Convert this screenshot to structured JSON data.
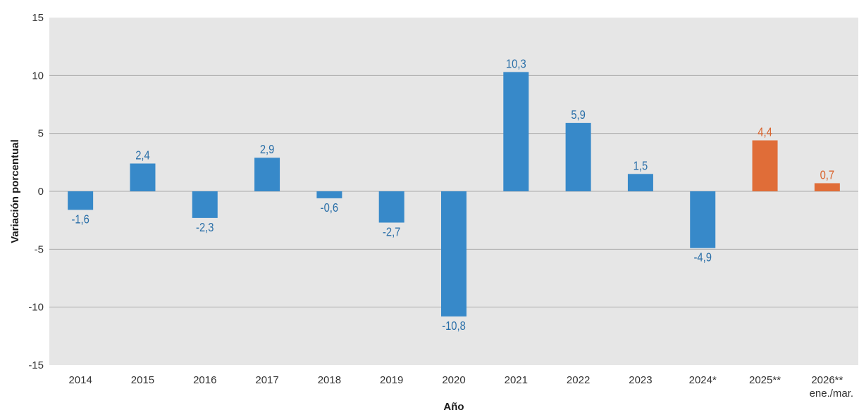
{
  "chart_data": {
    "type": "bar",
    "categories": [
      "2014",
      "2015",
      "2016",
      "2017",
      "2018",
      "2019",
      "2020",
      "2021",
      "2022",
      "2023",
      "2024*",
      "2025**",
      "2026**"
    ],
    "category_sublabels": [
      "",
      "",
      "",
      "",
      "",
      "",
      "",
      "",
      "",
      "",
      "",
      "",
      "ene./mar."
    ],
    "values": [
      -1.6,
      2.4,
      -2.3,
      2.9,
      -0.6,
      -2.7,
      -10.8,
      10.3,
      5.9,
      1.5,
      -4.9,
      4.4,
      0.7
    ],
    "data_labels": [
      "-1,6",
      "2,4",
      "-2,3",
      "2,9",
      "-0,6",
      "-2,7",
      "-10,8",
      "10,3",
      "5,9",
      "1,5",
      "-4,9",
      "4,4",
      "0,7"
    ],
    "bar_status": [
      "actual",
      "actual",
      "actual",
      "actual",
      "actual",
      "actual",
      "actual",
      "actual",
      "actual",
      "actual",
      "actual",
      "projected",
      "projected"
    ],
    "xlabel": "Año",
    "ylabel": "Variación porcentual",
    "ylim": [
      -15,
      15
    ],
    "yticks": [
      -15,
      -10,
      -5,
      0,
      5,
      10,
      15
    ],
    "ytick_labels": [
      "-15",
      "-10",
      "-5",
      "0",
      "5",
      "10",
      "15"
    ],
    "grid": true,
    "colors": {
      "actual": "#3789c9",
      "projected": "#e06d38",
      "actual_label": "#2a6fa8",
      "projected_label": "#d9622b",
      "plot_background": "#e6e6e6",
      "gridline": "#aaaaaa"
    }
  }
}
